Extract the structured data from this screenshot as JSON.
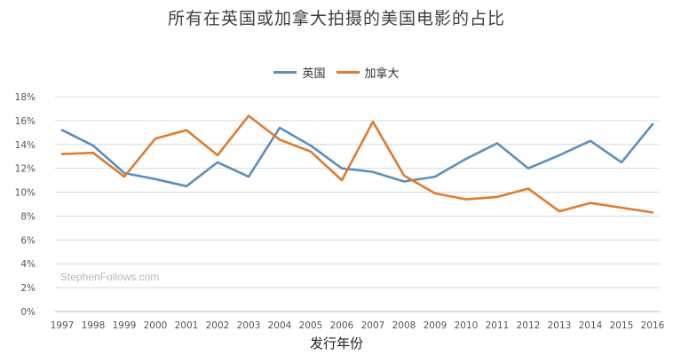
{
  "chart_data": {
    "type": "line",
    "title": "所有在英国或加拿大拍摄的美国电影的占比",
    "xlabel": "发行年份",
    "ylabel": "",
    "x": [
      "1997",
      "1998",
      "1999",
      "2000",
      "2001",
      "2002",
      "2003",
      "2004",
      "2005",
      "2006",
      "2007",
      "2008",
      "2009",
      "2010",
      "2011",
      "2012",
      "2013",
      "2014",
      "2015",
      "2016"
    ],
    "y_ticks": [
      "0%",
      "2%",
      "4%",
      "6%",
      "8%",
      "10%",
      "12%",
      "14%",
      "16%",
      "18%"
    ],
    "ylim": [
      0,
      18
    ],
    "grid": true,
    "legend_position": "top",
    "series": [
      {
        "name": "英国",
        "color": "#5b8fbf",
        "values": [
          15.2,
          13.9,
          11.6,
          11.1,
          10.5,
          12.5,
          11.3,
          15.4,
          13.9,
          12.0,
          11.7,
          10.9,
          11.3,
          12.8,
          14.1,
          12.0,
          13.1,
          14.3,
          12.5,
          15.7
        ]
      },
      {
        "name": "加拿大",
        "color": "#e07b2e",
        "values": [
          13.2,
          13.3,
          11.3,
          14.5,
          15.2,
          13.1,
          16.4,
          14.4,
          13.4,
          11.0,
          15.9,
          11.4,
          9.9,
          9.4,
          9.6,
          10.3,
          8.4,
          9.1,
          8.7,
          8.3
        ]
      }
    ],
    "watermark": "StephenFollows.com"
  }
}
